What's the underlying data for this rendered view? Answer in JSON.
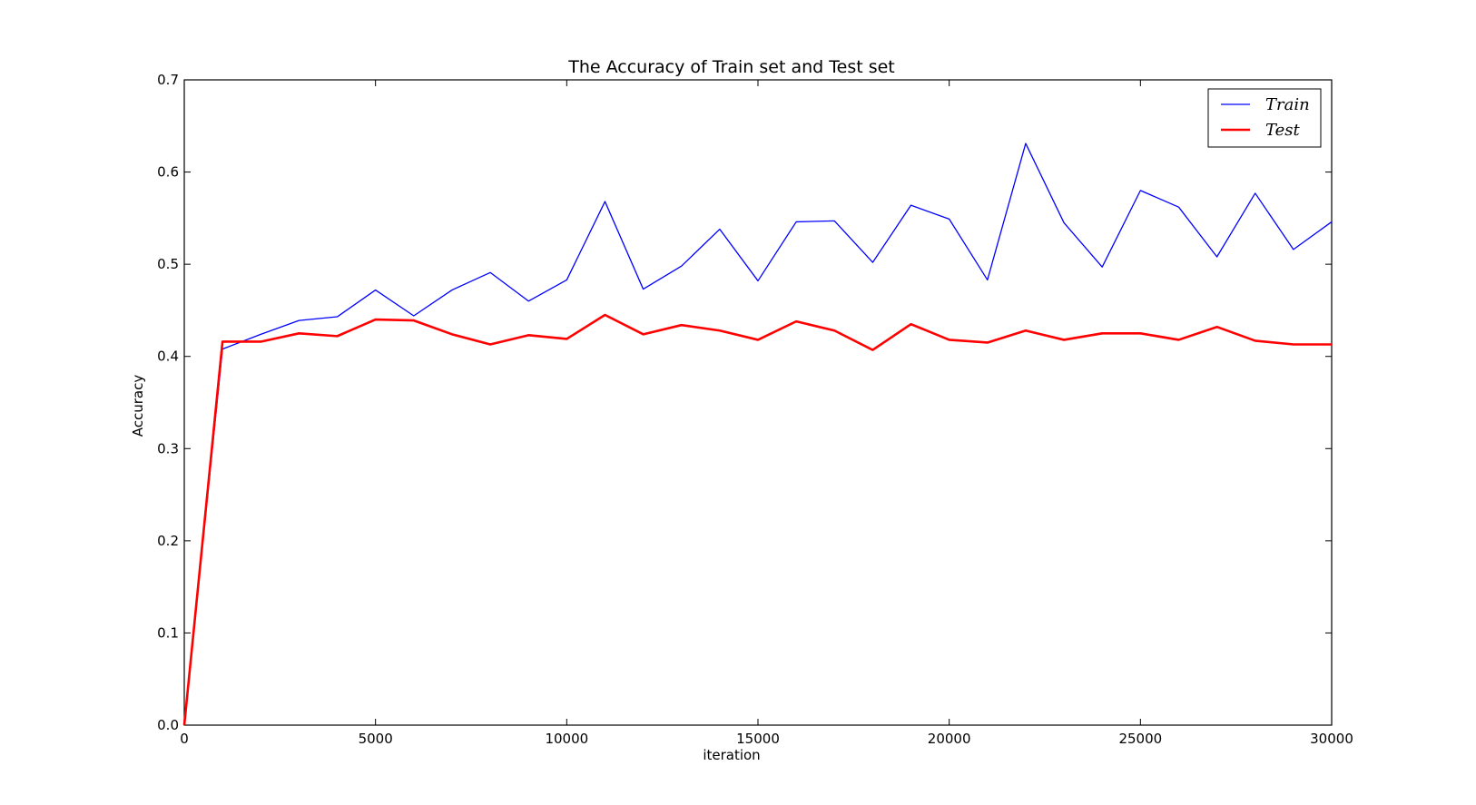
{
  "chart_data": {
    "type": "line",
    "title": "The Accuracy of Train set and Test set",
    "xlabel": "iteration",
    "ylabel": "Accuracy",
    "xlim": [
      0,
      30000
    ],
    "ylim": [
      0.0,
      0.7
    ],
    "xticks": [
      0,
      5000,
      10000,
      15000,
      20000,
      25000,
      30000
    ],
    "xtick_labels": [
      "0",
      "5000",
      "10000",
      "15000",
      "20000",
      "25000",
      "30000"
    ],
    "yticks": [
      0.0,
      0.1,
      0.2,
      0.3,
      0.4,
      0.5,
      0.6,
      0.7
    ],
    "ytick_labels": [
      "0.0",
      "0.1",
      "0.2",
      "0.3",
      "0.4",
      "0.5",
      "0.6",
      "0.7"
    ],
    "grid": false,
    "legend_position": "top-right",
    "x": [
      0,
      1000,
      2000,
      3000,
      4000,
      5000,
      6000,
      7000,
      8000,
      9000,
      10000,
      11000,
      12000,
      13000,
      14000,
      15000,
      16000,
      17000,
      18000,
      19000,
      20000,
      21000,
      22000,
      23000,
      24000,
      25000,
      26000,
      27000,
      28000,
      29000,
      30000
    ],
    "series": [
      {
        "name": "Train",
        "color": "#0000ff",
        "style": "thin",
        "values": [
          0.0,
          0.408,
          0.424,
          0.439,
          0.443,
          0.472,
          0.444,
          0.472,
          0.491,
          0.46,
          0.483,
          0.568,
          0.473,
          0.498,
          0.538,
          0.482,
          0.546,
          0.547,
          0.502,
          0.564,
          0.549,
          0.483,
          0.631,
          0.545,
          0.497,
          0.58,
          0.562,
          0.508,
          0.577,
          0.516,
          0.546
        ]
      },
      {
        "name": "Test",
        "color": "#ff0000",
        "style": "thick",
        "values": [
          0.0,
          0.416,
          0.416,
          0.425,
          0.422,
          0.44,
          0.439,
          0.424,
          0.413,
          0.423,
          0.419,
          0.445,
          0.424,
          0.434,
          0.428,
          0.418,
          0.438,
          0.428,
          0.407,
          0.435,
          0.418,
          0.415,
          0.428,
          0.418,
          0.425,
          0.425,
          0.418,
          0.432,
          0.417,
          0.413,
          0.413
        ]
      }
    ]
  }
}
